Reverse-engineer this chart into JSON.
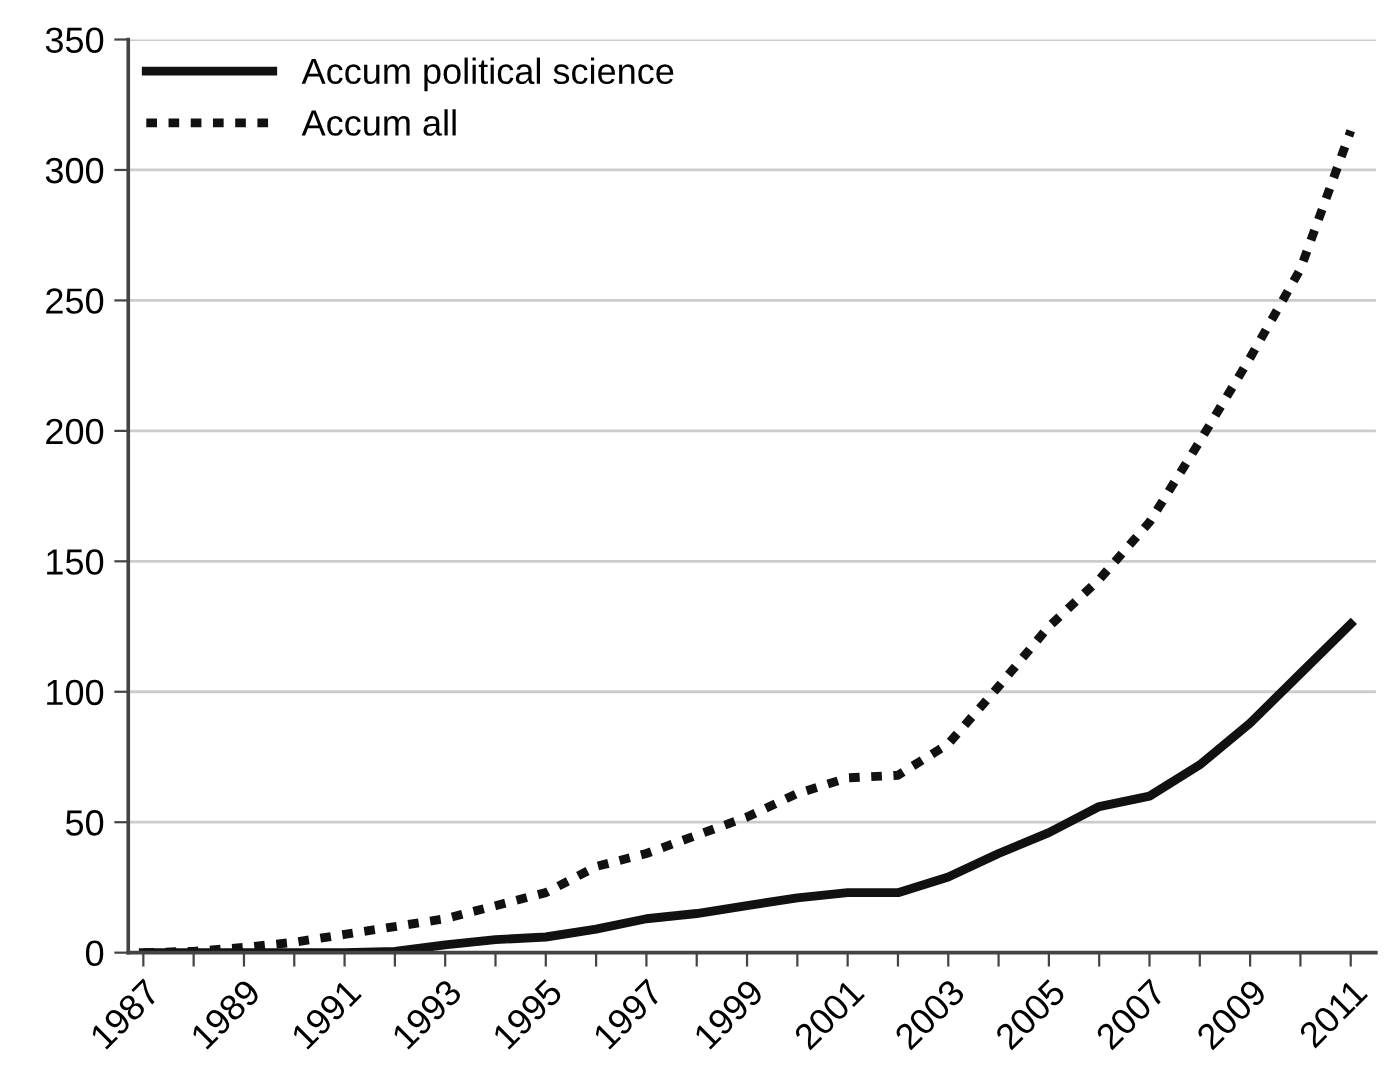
{
  "chart_data": {
    "type": "line",
    "x": [
      1987,
      1988,
      1989,
      1990,
      1991,
      1992,
      1993,
      1994,
      1995,
      1996,
      1997,
      1998,
      1999,
      2000,
      2001,
      2002,
      2003,
      2004,
      2005,
      2006,
      2007,
      2008,
      2009,
      2010,
      2011
    ],
    "series": [
      {
        "name": "Accum political science",
        "color": "#111111",
        "line_style": "solid",
        "values": [
          0,
          0,
          0,
          0,
          0,
          0.5,
          3,
          5,
          6,
          9,
          13,
          15,
          18,
          21,
          23,
          23,
          29,
          38,
          46,
          56,
          60,
          72,
          88,
          107,
          126
        ]
      },
      {
        "name": "Accum all",
        "color": "#111111",
        "line_style": "dotted",
        "values": [
          0,
          0.5,
          2,
          4,
          7,
          10,
          13,
          18,
          23,
          33,
          38,
          45,
          52,
          61,
          67,
          68,
          80,
          102,
          125,
          143,
          165,
          196,
          228,
          262,
          315
        ]
      }
    ],
    "xlim": [
      1986.7,
      2011.5
    ],
    "xticks": [
      1987,
      {
        "value": 1988,
        "label": null
      },
      1989,
      {
        "value": 1990,
        "label": null
      },
      1991,
      {
        "value": 1992,
        "label": null
      },
      1993,
      {
        "value": 1994,
        "label": null
      },
      1995,
      {
        "value": 1996,
        "label": null
      },
      1997,
      {
        "value": 1998,
        "label": null
      },
      1999,
      {
        "value": 2000,
        "label": null
      },
      2001,
      {
        "value": 2002,
        "label": null
      },
      2003,
      {
        "value": 2004,
        "label": null
      },
      2005,
      {
        "value": 2006,
        "label": null
      },
      2007,
      {
        "value": 2008,
        "label": null
      },
      2009,
      {
        "value": 2010,
        "label": null
      },
      2011
    ],
    "ylim": [
      0,
      350
    ],
    "yticks": [
      0,
      50,
      100,
      150,
      200,
      250,
      300,
      350
    ],
    "grid": "y",
    "legend": "top left",
    "marker": "none"
  }
}
